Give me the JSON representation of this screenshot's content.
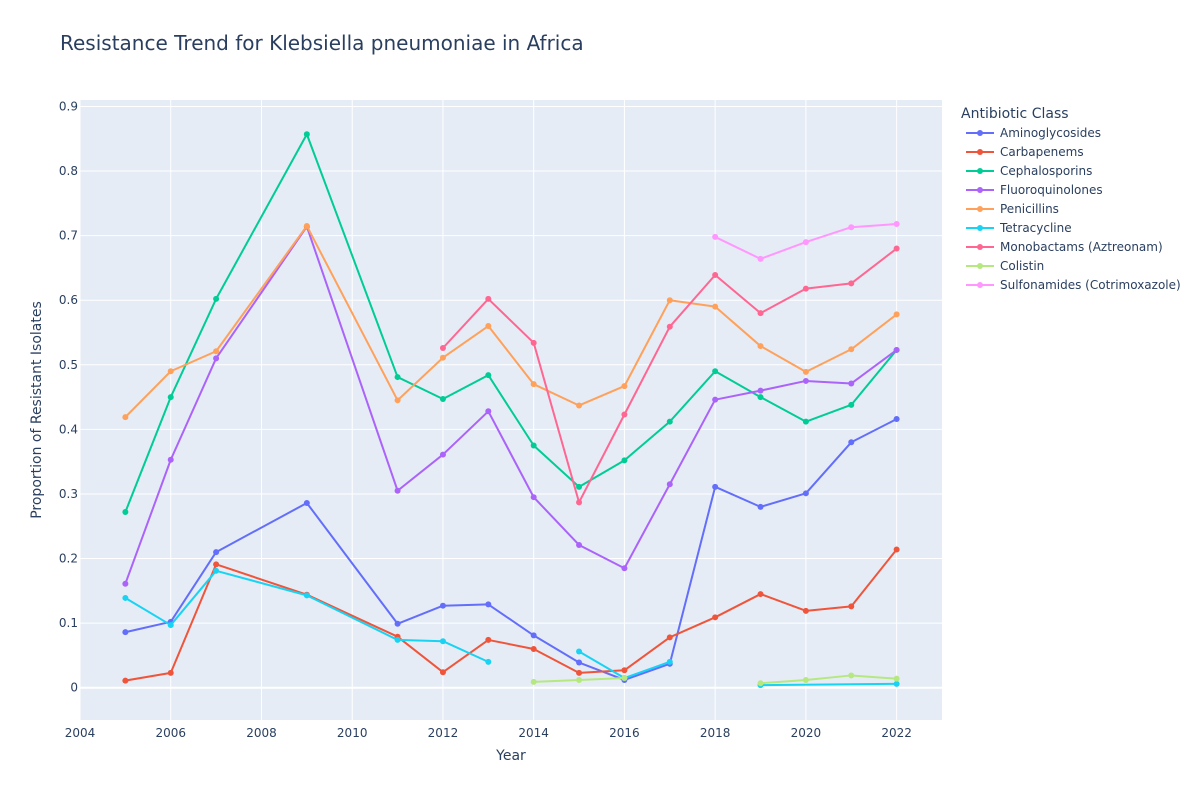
{
  "chart_data": {
    "type": "line",
    "title": "Resistance Trend for Klebsiella pneumoniae in Africa",
    "xlabel": "Year",
    "ylabel": "Proportion of Resistant Isolates",
    "xlim": [
      2004,
      2023
    ],
    "ylim": [
      -0.05,
      0.91
    ],
    "x_ticks": [
      2004,
      2006,
      2008,
      2010,
      2012,
      2014,
      2016,
      2018,
      2020,
      2022
    ],
    "y_ticks": [
      0,
      0.1,
      0.2,
      0.3,
      0.4,
      0.5,
      0.6,
      0.7,
      0.8,
      0.9
    ],
    "x_tick_labels": [
      "2004",
      "2006",
      "2008",
      "2010",
      "2012",
      "2014",
      "2016",
      "2018",
      "2020",
      "2022"
    ],
    "y_tick_labels": [
      "0",
      "0.1",
      "0.2",
      "0.3",
      "0.4",
      "0.5",
      "0.6",
      "0.7",
      "0.8",
      "0.9"
    ],
    "grid": true,
    "legend_title": "Antibiotic Class",
    "legend_position": "right",
    "series": [
      {
        "name": "Aminoglycosides",
        "color": "#636efa",
        "segments": [
          [
            [
              2005,
              0.086
            ],
            [
              2006,
              0.102
            ],
            [
              2007,
              0.21
            ],
            [
              2009,
              0.286
            ],
            [
              2011,
              0.099
            ],
            [
              2012,
              0.127
            ],
            [
              2013,
              0.129
            ],
            [
              2014,
              0.081
            ],
            [
              2015,
              0.039
            ],
            [
              2016,
              0.012
            ],
            [
              2017,
              0.037
            ],
            [
              2018,
              0.311
            ],
            [
              2019,
              0.28
            ],
            [
              2020,
              0.301
            ],
            [
              2021,
              0.38
            ],
            [
              2022,
              0.416
            ]
          ]
        ]
      },
      {
        "name": "Carbapenems",
        "color": "#ef553b",
        "segments": [
          [
            [
              2005,
              0.011
            ],
            [
              2006,
              0.023
            ],
            [
              2007,
              0.191
            ],
            [
              2009,
              0.144
            ],
            [
              2011,
              0.079
            ],
            [
              2012,
              0.024
            ],
            [
              2013,
              0.074
            ],
            [
              2014,
              0.06
            ],
            [
              2015,
              0.023
            ],
            [
              2016,
              0.027
            ],
            [
              2017,
              0.078
            ],
            [
              2018,
              0.109
            ],
            [
              2019,
              0.145
            ],
            [
              2020,
              0.119
            ],
            [
              2021,
              0.126
            ],
            [
              2022,
              0.214
            ]
          ]
        ]
      },
      {
        "name": "Cephalosporins",
        "color": "#00cc96",
        "segments": [
          [
            [
              2005,
              0.272
            ],
            [
              2006,
              0.45
            ],
            [
              2007,
              0.602
            ],
            [
              2009,
              0.857
            ],
            [
              2011,
              0.481
            ],
            [
              2012,
              0.447
            ],
            [
              2013,
              0.484
            ],
            [
              2014,
              0.375
            ],
            [
              2015,
              0.311
            ],
            [
              2016,
              0.352
            ],
            [
              2017,
              0.412
            ],
            [
              2018,
              0.49
            ],
            [
              2019,
              0.45
            ],
            [
              2020,
              0.412
            ],
            [
              2021,
              0.438
            ],
            [
              2022,
              0.523
            ]
          ]
        ]
      },
      {
        "name": "Fluoroquinolones",
        "color": "#ab63fa",
        "segments": [
          [
            [
              2005,
              0.161
            ],
            [
              2006,
              0.353
            ],
            [
              2007,
              0.51
            ],
            [
              2009,
              0.714
            ],
            [
              2011,
              0.305
            ],
            [
              2012,
              0.361
            ],
            [
              2013,
              0.428
            ],
            [
              2014,
              0.295
            ],
            [
              2015,
              0.221
            ],
            [
              2016,
              0.185
            ],
            [
              2017,
              0.315
            ],
            [
              2018,
              0.446
            ],
            [
              2019,
              0.46
            ],
            [
              2020,
              0.475
            ],
            [
              2021,
              0.471
            ],
            [
              2022,
              0.523
            ]
          ]
        ]
      },
      {
        "name": "Penicillins",
        "color": "#ffa15a",
        "segments": [
          [
            [
              2005,
              0.419
            ],
            [
              2006,
              0.49
            ],
            [
              2007,
              0.521
            ],
            [
              2009,
              0.715
            ],
            [
              2011,
              0.445
            ],
            [
              2012,
              0.511
            ],
            [
              2013,
              0.56
            ],
            [
              2014,
              0.47
            ],
            [
              2015,
              0.437
            ],
            [
              2016,
              0.467
            ],
            [
              2017,
              0.6
            ],
            [
              2018,
              0.59
            ],
            [
              2019,
              0.529
            ],
            [
              2020,
              0.489
            ],
            [
              2021,
              0.524
            ],
            [
              2022,
              0.578
            ]
          ]
        ]
      },
      {
        "name": "Tetracycline",
        "color": "#19d3f3",
        "segments": [
          [
            [
              2005,
              0.139
            ],
            [
              2006,
              0.097
            ],
            [
              2007,
              0.181
            ],
            [
              2009,
              0.143
            ],
            [
              2011,
              0.074
            ],
            [
              2012,
              0.072
            ],
            [
              2013,
              0.04
            ]
          ],
          [
            [
              2015,
              0.056
            ],
            [
              2016,
              0.015
            ],
            [
              2017,
              0.04
            ]
          ],
          [
            [
              2019,
              0.004
            ],
            [
              2022,
              0.006
            ]
          ]
        ]
      },
      {
        "name": "Monobactams (Aztreonam)",
        "color": "#ff6692",
        "segments": [
          [
            [
              2012,
              0.526
            ],
            [
              2013,
              0.602
            ],
            [
              2014,
              0.534
            ],
            [
              2015,
              0.287
            ],
            [
              2016,
              0.423
            ],
            [
              2017,
              0.559
            ],
            [
              2018,
              0.639
            ],
            [
              2019,
              0.58
            ],
            [
              2020,
              0.618
            ],
            [
              2021,
              0.626
            ],
            [
              2022,
              0.68
            ]
          ]
        ]
      },
      {
        "name": "Colistin",
        "color": "#b6e880",
        "segments": [
          [
            [
              2014,
              0.009
            ],
            [
              2015,
              0.012
            ],
            [
              2016,
              0.015
            ]
          ],
          [
            [
              2019,
              0.007
            ],
            [
              2020,
              0.012
            ],
            [
              2021,
              0.019
            ],
            [
              2022,
              0.014
            ]
          ]
        ]
      },
      {
        "name": "Sulfonamides (Cotrimoxazole)",
        "color": "#ff97ff",
        "segments": [
          [
            [
              2018,
              0.698
            ],
            [
              2019,
              0.664
            ],
            [
              2020,
              0.69
            ],
            [
              2021,
              0.713
            ],
            [
              2022,
              0.718
            ]
          ]
        ]
      }
    ]
  }
}
